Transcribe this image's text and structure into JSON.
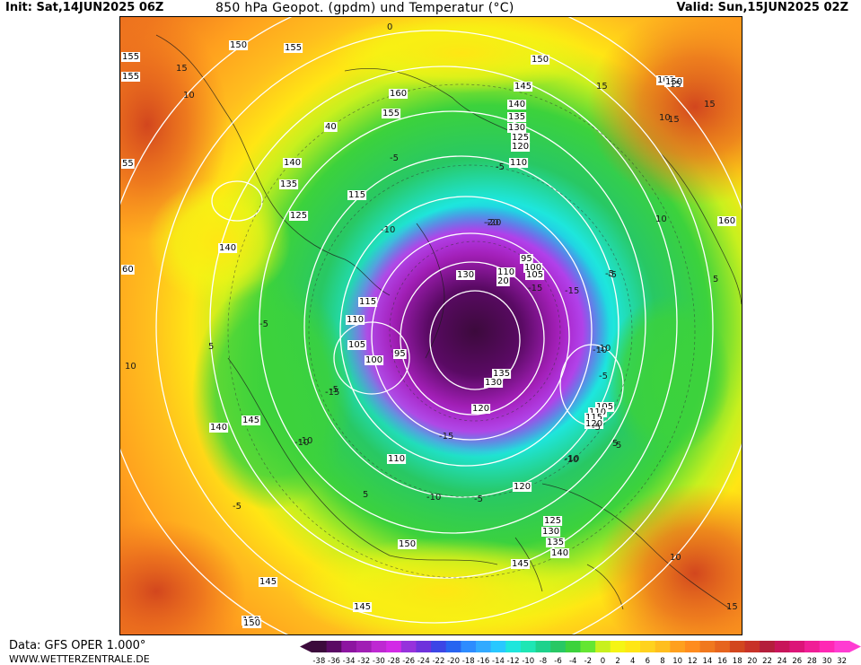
{
  "header": {
    "init": "Init: Sat,14JUN2025 06Z",
    "title": "850 hPa Geopot. (gpdm) und Temperatur (°C)",
    "valid": "Valid: Sun,15JUN2025 02Z"
  },
  "footer": {
    "source": "Data: GFS OPER 1.000°",
    "website": "WWW.WETTERZENTRALE.DE"
  },
  "legend": {
    "labels": [
      "-38",
      "-36",
      "-34",
      "-32",
      "-30",
      "-28",
      "-26",
      "-24",
      "-22",
      "-20",
      "-18",
      "-16",
      "-14",
      "-12",
      "-10",
      "-8",
      "-6",
      "-4",
      "-2",
      "0",
      "2",
      "4",
      "6",
      "8",
      "10",
      "12",
      "14",
      "16",
      "18",
      "20",
      "22",
      "24",
      "26",
      "28",
      "30",
      "32"
    ],
    "colors": [
      "#3c0a3c",
      "#5a0a64",
      "#8c14a0",
      "#a01eb4",
      "#be28d2",
      "#d22ae6",
      "#9632dc",
      "#6e32dc",
      "#3c46e6",
      "#2864f0",
      "#2d8cff",
      "#32aaff",
      "#28c8ff",
      "#1ee6dc",
      "#1ee6b4",
      "#1ed28c",
      "#28c864",
      "#3cd23c",
      "#64e632",
      "#c8f01e",
      "#f5f514",
      "#ffe614",
      "#ffd21e",
      "#ffbe1e",
      "#ffa01e",
      "#ff8c1e",
      "#f0781e",
      "#e6641e",
      "#d2461e",
      "#c83228",
      "#b41e3c",
      "#c8145a",
      "#dc1478",
      "#f01e96",
      "#ff28b4",
      "#ff3cd2"
    ]
  },
  "map": {
    "geopotential_labels": [
      "150",
      "155",
      "155",
      "160",
      "155",
      "145",
      "140",
      "135",
      "130",
      "125",
      "120",
      "110",
      "150",
      "160",
      "140",
      "135",
      "115",
      "140",
      "125",
      "130",
      "110",
      "20",
      "95",
      "100",
      "105",
      "115",
      "110",
      "105",
      "100",
      "95",
      "135",
      "130",
      "120",
      "150",
      "145",
      "140",
      "145",
      "150",
      "160",
      "110",
      "120",
      "125",
      "130",
      "135",
      "140",
      "150",
      "105",
      "110",
      "115",
      "120",
      "145",
      "145",
      "150",
      "155",
      "60",
      "55",
      "40"
    ],
    "temperature_labels": [
      "10",
      "0",
      "-5",
      "-5",
      "-10",
      "-20",
      "-15",
      "-10",
      "-5",
      "10",
      "10",
      "-5",
      "-10",
      "-15",
      "-10",
      "-5",
      "-10",
      "-5",
      "5",
      "15",
      "15",
      "10",
      "5",
      "-5",
      "-10",
      "-5",
      "-15",
      "-20",
      "-10",
      "-5",
      "5",
      "15",
      "-5",
      "-15",
      "-10",
      "5",
      "10",
      "5",
      "15",
      "15",
      "15"
    ]
  }
}
